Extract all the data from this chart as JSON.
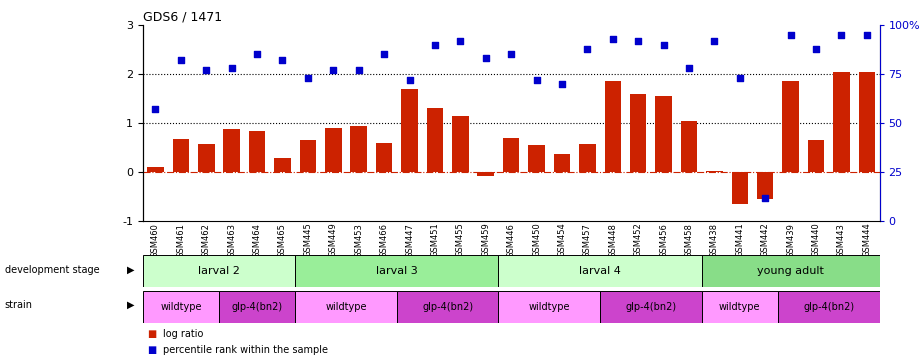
{
  "title": "GDS6 / 1471",
  "samples": [
    "GSM460",
    "GSM461",
    "GSM462",
    "GSM463",
    "GSM464",
    "GSM465",
    "GSM445",
    "GSM449",
    "GSM453",
    "GSM466",
    "GSM447",
    "GSM451",
    "GSM455",
    "GSM459",
    "GSM446",
    "GSM450",
    "GSM454",
    "GSM457",
    "GSM448",
    "GSM452",
    "GSM456",
    "GSM458",
    "GSM438",
    "GSM441",
    "GSM442",
    "GSM439",
    "GSM440",
    "GSM443",
    "GSM444"
  ],
  "log_ratio": [
    0.1,
    0.68,
    0.58,
    0.88,
    0.85,
    0.3,
    0.65,
    0.9,
    0.95,
    0.6,
    1.7,
    1.3,
    1.15,
    -0.08,
    0.7,
    0.55,
    0.38,
    0.58,
    1.85,
    1.6,
    1.55,
    1.05,
    0.02,
    -0.65,
    -0.55,
    1.85,
    0.65,
    2.05,
    2.05
  ],
  "percentile": [
    57,
    82,
    77,
    78,
    85,
    82,
    73,
    77,
    77,
    85,
    72,
    90,
    92,
    83,
    85,
    72,
    70,
    88,
    93,
    92,
    90,
    78,
    92,
    73,
    12,
    95,
    88,
    95,
    95
  ],
  "bar_color": "#cc2200",
  "dot_color": "#0000cc",
  "dotted_line1": 2.0,
  "dotted_line2": 1.0,
  "zero_line": 0.0,
  "ylim": [
    -1,
    3
  ],
  "development_stages": [
    {
      "label": "larval 2",
      "start": 0,
      "end": 5,
      "color": "#ccffcc"
    },
    {
      "label": "larval 3",
      "start": 6,
      "end": 13,
      "color": "#99ee99"
    },
    {
      "label": "larval 4",
      "start": 14,
      "end": 21,
      "color": "#ccffcc"
    },
    {
      "label": "young adult",
      "start": 22,
      "end": 28,
      "color": "#88dd88"
    }
  ],
  "strains": [
    {
      "label": "wildtype",
      "start": 0,
      "end": 2,
      "color": "#ff99ff"
    },
    {
      "label": "glp-4(bn2)",
      "start": 3,
      "end": 5,
      "color": "#cc44cc"
    },
    {
      "label": "wildtype",
      "start": 6,
      "end": 9,
      "color": "#ff99ff"
    },
    {
      "label": "glp-4(bn2)",
      "start": 10,
      "end": 13,
      "color": "#cc44cc"
    },
    {
      "label": "wildtype",
      "start": 14,
      "end": 17,
      "color": "#ff99ff"
    },
    {
      "label": "glp-4(bn2)",
      "start": 18,
      "end": 21,
      "color": "#cc44cc"
    },
    {
      "label": "wildtype",
      "start": 22,
      "end": 24,
      "color": "#ff99ff"
    },
    {
      "label": "glp-4(bn2)",
      "start": 25,
      "end": 28,
      "color": "#cc44cc"
    }
  ],
  "legend_items": [
    {
      "label": "log ratio",
      "color": "#cc2200"
    },
    {
      "label": "percentile rank within the sample",
      "color": "#0000cc"
    }
  ],
  "right_ytick_positions_pct": [
    0,
    25,
    50,
    75,
    100
  ],
  "right_ytick_labels": [
    "0",
    "25",
    "50",
    "75",
    "100%"
  ]
}
